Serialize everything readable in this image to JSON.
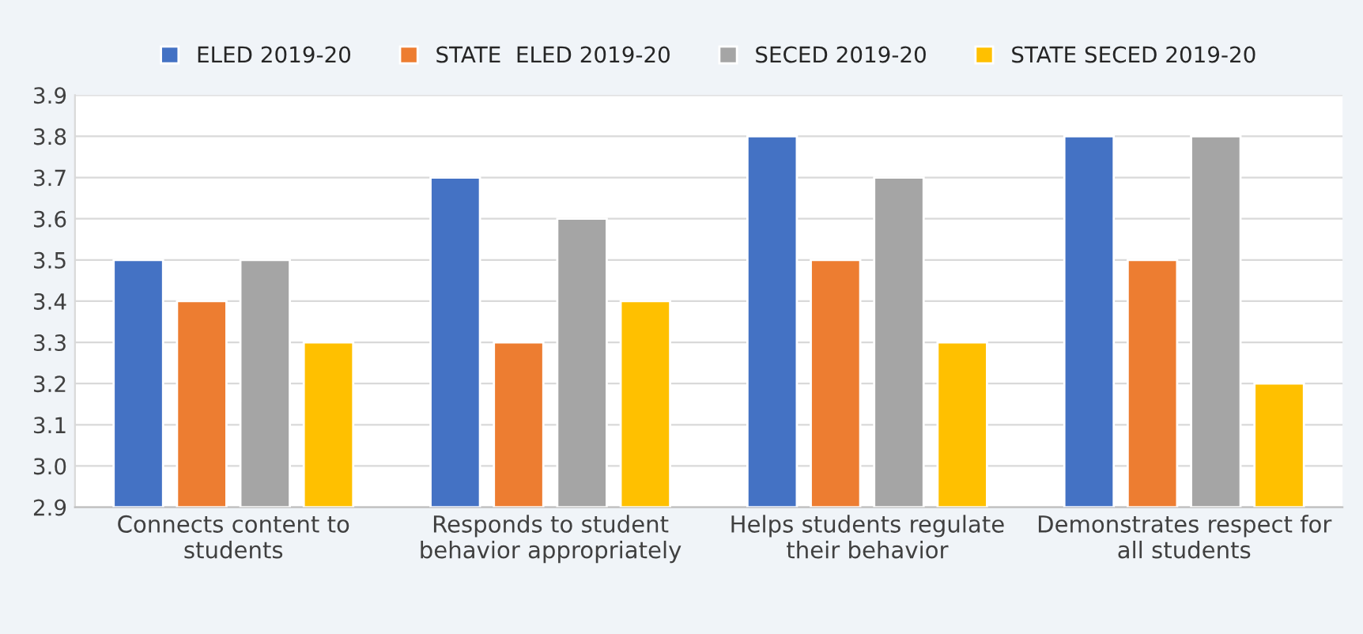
{
  "chart_data": {
    "type": "bar",
    "categories": [
      "Connects content to students",
      "Responds to student behavior appropriately",
      "Helps students regulate their behavior",
      "Demonstrates respect for all students"
    ],
    "series": [
      {
        "name": "ELED 2019-20",
        "color": "#4472c4",
        "values": [
          3.5,
          3.7,
          3.8,
          3.8
        ]
      },
      {
        "name": "STATE  ELED 2019-20",
        "color": "#ed7d31",
        "values": [
          3.4,
          3.3,
          3.5,
          3.5
        ]
      },
      {
        "name": "SECED 2019-20",
        "color": "#a5a5a5",
        "values": [
          3.5,
          3.6,
          3.7,
          3.8
        ]
      },
      {
        "name": "STATE SECED 2019-20",
        "color": "#ffc000",
        "values": [
          3.3,
          3.4,
          3.3,
          3.2
        ]
      }
    ],
    "ylim": [
      2.9,
      3.9
    ],
    "yticks": [
      {
        "value": 2.9,
        "label": "2.9"
      },
      {
        "value": 3.0,
        "label": "3.0"
      },
      {
        "value": 3.1,
        "label": "3.1"
      },
      {
        "value": 3.2,
        "label": "3.2"
      },
      {
        "value": 3.3,
        "label": "3.3"
      },
      {
        "value": 3.4,
        "label": "3.4"
      },
      {
        "value": 3.5,
        "label": "3.5"
      },
      {
        "value": 3.6,
        "label": "3.6"
      },
      {
        "value": 3.7,
        "label": "3.7"
      },
      {
        "value": 3.8,
        "label": "3.8"
      },
      {
        "value": 3.9,
        "label": "3.9"
      }
    ],
    "grid": "y",
    "legend": "top"
  }
}
